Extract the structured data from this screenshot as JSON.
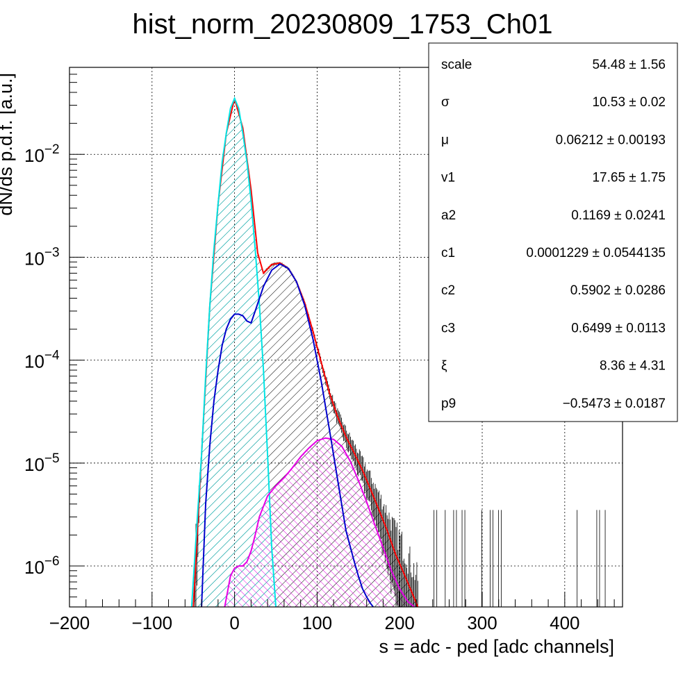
{
  "chart_data": {
    "type": "line",
    "title": "hist_norm_20230809_1753_Ch01",
    "xlabel": "s = adc - ped [adc channels]",
    "ylabel": "dN/ds p.d.f. [a.u.]",
    "xlim": [
      -200,
      470
    ],
    "ylim": [
      4e-07,
      0.07
    ],
    "yscale": "log",
    "grid": true,
    "x_ticks": [
      {
        "value": -200,
        "label": "−200"
      },
      {
        "value": -100,
        "label": "−100"
      },
      {
        "value": 0,
        "label": "0"
      },
      {
        "value": 100,
        "label": "100"
      },
      {
        "value": 200,
        "label": "200"
      },
      {
        "value": 300,
        "label": "300"
      },
      {
        "value": 400,
        "label": "400"
      }
    ],
    "y_ticks": [
      {
        "value": 0.01,
        "base": "10",
        "exp": "−2"
      },
      {
        "value": 0.001,
        "base": "10",
        "exp": "−3"
      },
      {
        "value": 0.0001,
        "base": "10",
        "exp": "−4"
      },
      {
        "value": 1e-05,
        "base": "10",
        "exp": "−5"
      },
      {
        "value": 1e-06,
        "base": "10",
        "exp": "−6"
      }
    ],
    "series": [
      {
        "color": "#ff0000",
        "role": "total fit",
        "x": [
          -50,
          -40,
          -30,
          -20,
          -10,
          0,
          10,
          20,
          28,
          35,
          45,
          55,
          65,
          75,
          85,
          95,
          105,
          115,
          125,
          135,
          145,
          155,
          165,
          175,
          185,
          195,
          205,
          215,
          222
        ],
        "y": [
          4e-07,
          1.2e-05,
          0.00034,
          0.0033,
          0.016,
          0.035,
          0.018,
          0.0045,
          0.0011,
          0.0007,
          0.00085,
          0.00088,
          0.00078,
          0.00058,
          0.00036,
          0.00019,
          9.5e-05,
          4.8e-05,
          2.8e-05,
          1.8e-05,
          1.25e-05,
          8.5e-06,
          5.5e-06,
          3.5e-06,
          2.2e-06,
          1.3e-06,
          8.5e-07,
          5.5e-07,
          4e-07
        ]
      },
      {
        "color": "#00e5e5",
        "role": "pedestal component",
        "x": [
          -52,
          -45,
          -40,
          -35,
          -30,
          -25,
          -20,
          -15,
          -10,
          -5,
          0,
          5,
          10,
          15,
          20,
          25,
          30,
          35,
          40,
          45,
          50
        ],
        "y": [
          4e-07,
          3e-06,
          1.2e-05,
          7e-05,
          0.00034,
          0.0012,
          0.0033,
          0.0085,
          0.016,
          0.028,
          0.035,
          0.028,
          0.016,
          0.0085,
          0.0035,
          0.0012,
          0.00035,
          8e-05,
          1.2e-05,
          1.5e-06,
          4e-07
        ]
      },
      {
        "color": "#0000cc",
        "role": "single p.e. component",
        "x": [
          -40,
          -35,
          -30,
          -25,
          -20,
          -15,
          -10,
          -5,
          0,
          5,
          10,
          15,
          20,
          25,
          35,
          45,
          55,
          65,
          75,
          85,
          95,
          105,
          115,
          125,
          135,
          145,
          150,
          155,
          160,
          165,
          168
        ],
        "y": [
          4e-07,
          4e-06,
          1.5e-05,
          4e-05,
          8e-05,
          0.00014,
          0.0002,
          0.00025,
          0.00028,
          0.00028,
          0.00027,
          0.00024,
          0.00023,
          0.0003,
          0.00052,
          0.00075,
          0.00086,
          0.00078,
          0.00058,
          0.00034,
          0.00016,
          6.2e-05,
          2.1e-05,
          6.8e-06,
          2.2e-06,
          1.1e-06,
          8e-07,
          6e-07,
          5e-07,
          4.3e-07,
          4e-07
        ]
      },
      {
        "color": "#e600e6",
        "role": "multi p.e. component",
        "x": [
          -12,
          -5,
          0,
          5,
          10,
          15,
          20,
          25,
          30,
          40,
          50,
          60,
          70,
          80,
          90,
          100,
          110,
          120,
          130,
          140,
          150,
          160,
          170,
          180,
          190,
          200,
          210,
          218
        ],
        "y": [
          4e-07,
          8e-07,
          9.5e-07,
          1e-06,
          1e-06,
          1.1e-06,
          1.4e-06,
          2e-06,
          3e-06,
          4.8e-06,
          6e-06,
          7.2e-06,
          9e-06,
          1.15e-05,
          1.4e-05,
          1.65e-05,
          1.75e-05,
          1.7e-05,
          1.45e-05,
          1.05e-05,
          6.8e-06,
          4.2e-06,
          2.5e-06,
          1.5e-06,
          9e-07,
          6e-07,
          4.5e-07,
          4e-07
        ]
      }
    ]
  },
  "stats": [
    {
      "name": "scale",
      "value": "54.48 ± 1.56"
    },
    {
      "name": "σ",
      "value": "10.53 ± 0.02"
    },
    {
      "name": "μ",
      "value": "0.06212 ± 0.00193"
    },
    {
      "name": "v1",
      "value": "17.65 ± 1.75"
    },
    {
      "name": "a2",
      "value": "0.1169 ± 0.0241"
    },
    {
      "name": "c1",
      "value": "0.0001229 ± 0.0544135"
    },
    {
      "name": "c2",
      "value": "0.5902 ± 0.0286"
    },
    {
      "name": "c3",
      "value": "0.6499 ± 0.0113"
    },
    {
      "name": "ξ",
      "value": "8.36 ± 4.31"
    },
    {
      "name": "p9",
      "value": "−0.5473 ± 0.0187"
    }
  ]
}
